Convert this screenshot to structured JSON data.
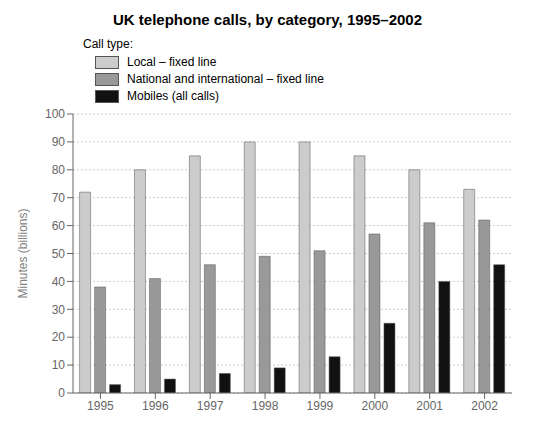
{
  "chart_data": {
    "type": "bar",
    "title": "UK telephone calls, by category, 1995–2002",
    "y_label": "Minutes (billions)",
    "legend_title": "Call type:",
    "legend": "top",
    "categories": [
      "1995",
      "1996",
      "1997",
      "1998",
      "1999",
      "2000",
      "2001",
      "2002"
    ],
    "series": [
      {
        "name": "Local – fixed line",
        "color": "#cccccc",
        "values": [
          72,
          80,
          85,
          90,
          90,
          85,
          80,
          73
        ]
      },
      {
        "name": "National and international – fixed line",
        "color": "#999999",
        "values": [
          38,
          41,
          46,
          49,
          51,
          57,
          61,
          62
        ]
      },
      {
        "name": "Mobiles (all calls)",
        "color": "#111111",
        "values": [
          3,
          5,
          7,
          9,
          13,
          25,
          40,
          46
        ]
      }
    ],
    "ylim": [
      0,
      100
    ],
    "yticks": [
      0,
      10,
      20,
      30,
      40,
      50,
      60,
      70,
      80,
      90,
      100
    ],
    "grid": true
  }
}
